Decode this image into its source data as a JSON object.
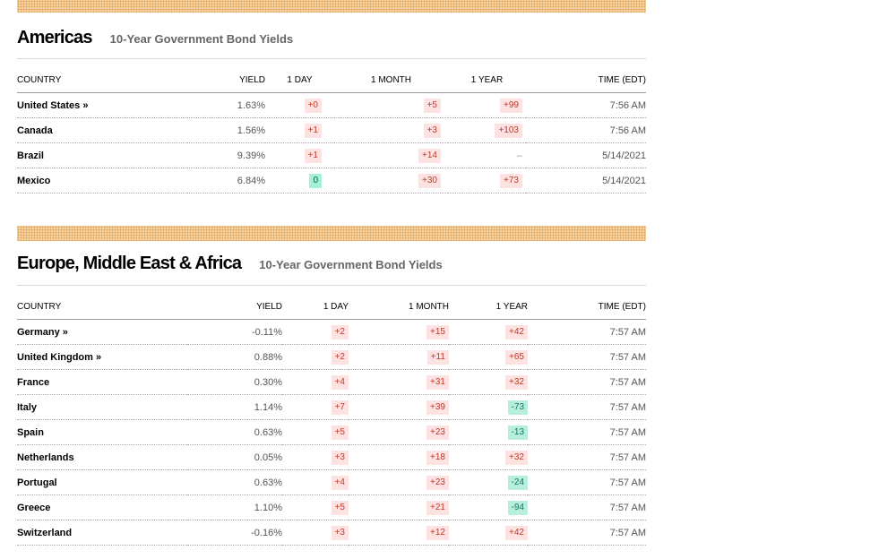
{
  "sections": [
    {
      "region": "Americas",
      "subtitle": "10-Year Government Bond Yields",
      "columns": [
        "COUNTRY",
        "YIELD",
        "1 DAY",
        "1 MONTH",
        "1 YEAR",
        "TIME (EDT)"
      ],
      "rows": [
        {
          "country": "United States »",
          "yield": "1.63%",
          "day": "+0",
          "month": "+5",
          "year": "+99",
          "time": "7:56 AM"
        },
        {
          "country": "Canada",
          "yield": "1.56%",
          "day": "+1",
          "month": "+3",
          "year": "+103",
          "time": "7:56 AM"
        },
        {
          "country": "Brazil",
          "yield": "9.39%",
          "day": "+1",
          "month": "+14",
          "year": "--",
          "time": "5/14/2021"
        },
        {
          "country": "Mexico",
          "yield": "6.84%",
          "day": "0",
          "month": "+30",
          "year": "+73",
          "time": "5/14/2021"
        }
      ]
    },
    {
      "region": "Europe, Middle East & Africa",
      "subtitle": "10-Year Government Bond Yields",
      "columns": [
        "COUNTRY",
        "YIELD",
        "1 DAY",
        "1 MONTH",
        "1 YEAR",
        "TIME (EDT)"
      ],
      "rows": [
        {
          "country": "Germany »",
          "yield": "-0.11%",
          "day": "+2",
          "month": "+15",
          "year": "+42",
          "time": "7:57 AM"
        },
        {
          "country": "United Kingdom »",
          "yield": "0.88%",
          "day": "+2",
          "month": "+11",
          "year": "+65",
          "time": "7:57 AM"
        },
        {
          "country": "France",
          "yield": "0.30%",
          "day": "+4",
          "month": "+31",
          "year": "+32",
          "time": "7:57 AM"
        },
        {
          "country": "Italy",
          "yield": "1.14%",
          "day": "+7",
          "month": "+39",
          "year": "-73",
          "time": "7:57 AM"
        },
        {
          "country": "Spain",
          "yield": "0.63%",
          "day": "+5",
          "month": "+23",
          "year": "-13",
          "time": "7:57 AM"
        },
        {
          "country": "Netherlands",
          "yield": "0.05%",
          "day": "+3",
          "month": "+18",
          "year": "+32",
          "time": "7:57 AM"
        },
        {
          "country": "Portugal",
          "yield": "0.63%",
          "day": "+4",
          "month": "+23",
          "year": "-24",
          "time": "7:57 AM"
        },
        {
          "country": "Greece",
          "yield": "1.10%",
          "day": "+5",
          "month": "+21",
          "year": "-94",
          "time": "7:57 AM"
        },
        {
          "country": "Switzerland",
          "yield": "-0.16%",
          "day": "+3",
          "month": "+12",
          "year": "+42",
          "time": "7:57 AM"
        }
      ]
    }
  ]
}
